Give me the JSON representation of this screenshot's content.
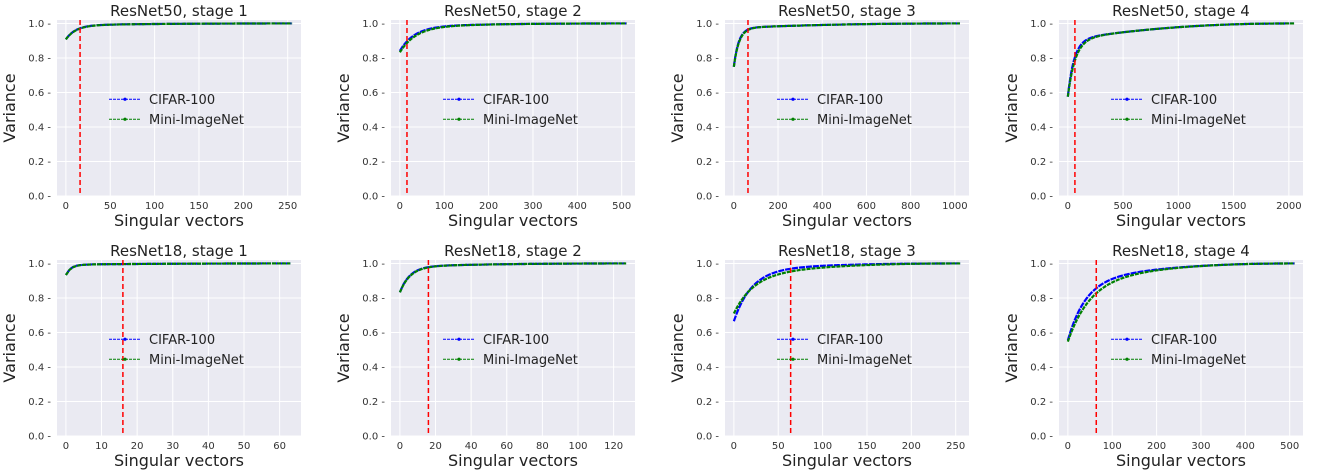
{
  "chart_data": [
    {
      "type": "line",
      "title": "ResNet50, stage 1",
      "xlabel": "Singular vectors",
      "ylabel": "Variance",
      "xlim": [
        -10,
        265
      ],
      "ylim": [
        0,
        1.02
      ],
      "xticks": [
        0,
        50,
        100,
        150,
        200,
        250
      ],
      "yticks": [
        0.0,
        0.2,
        0.4,
        0.6,
        0.8,
        1.0
      ],
      "threshold_x": 16,
      "n": 256,
      "series": [
        {
          "name": "CIFAR-100",
          "color": "#0000ff",
          "start": 0.89,
          "k": 0.09
        },
        {
          "name": "Mini-ImageNet",
          "color": "#008000",
          "start": 0.89,
          "k": 0.085
        }
      ],
      "grid": true,
      "legend_position": "center"
    },
    {
      "type": "line",
      "title": "ResNet50, stage 2",
      "xlabel": "Singular vectors",
      "ylabel": "Variance",
      "xlim": [
        -20,
        530
      ],
      "ylim": [
        0,
        1.02
      ],
      "xticks": [
        0,
        100,
        200,
        300,
        400,
        500
      ],
      "yticks": [
        0.0,
        0.2,
        0.4,
        0.6,
        0.8,
        1.0
      ],
      "threshold_x": 16,
      "n": 512,
      "series": [
        {
          "name": "CIFAR-100",
          "color": "#0000ff",
          "start": 0.81,
          "k": 0.06
        },
        {
          "name": "Mini-ImageNet",
          "color": "#008000",
          "start": 0.8,
          "k": 0.055
        }
      ],
      "grid": true,
      "legend_position": "center"
    },
    {
      "type": "line",
      "title": "ResNet50, stage 3",
      "xlabel": "Singular vectors",
      "ylabel": "Variance",
      "xlim": [
        -40,
        1064
      ],
      "ylim": [
        0.0,
        1.02
      ],
      "xticks": [
        0,
        200,
        400,
        600,
        800,
        1000
      ],
      "yticks": [
        0.0,
        0.2,
        0.4,
        0.6,
        0.8,
        1.0
      ],
      "threshold_x": 64,
      "n": 1024,
      "series": [
        {
          "name": "CIFAR-100",
          "color": "#0000ff",
          "start": 0.7,
          "k": 0.045
        },
        {
          "name": "Mini-ImageNet",
          "color": "#008000",
          "start": 0.7,
          "k": 0.042
        }
      ],
      "grid": true,
      "legend_position": "center"
    },
    {
      "type": "line",
      "title": "ResNet50, stage 4",
      "xlabel": "Singular vectors",
      "ylabel": "Variance",
      "xlim": [
        -80,
        2128
      ],
      "ylim": [
        0.0,
        1.02
      ],
      "xticks": [
        0,
        500,
        1000,
        1500,
        2000
      ],
      "yticks": [
        0.0,
        0.2,
        0.4,
        0.6,
        0.8,
        1.0
      ],
      "threshold_x": 64,
      "n": 2048,
      "series": [
        {
          "name": "CIFAR-100",
          "color": "#0000ff",
          "start": 0.4,
          "k": 0.035
        },
        {
          "name": "Mini-ImageNet",
          "color": "#008000",
          "start": 0.4,
          "k": 0.03
        }
      ],
      "grid": true,
      "legend_position": "center"
    },
    {
      "type": "line",
      "title": "ResNet18, stage 1",
      "xlabel": "Singular vectors",
      "ylabel": "Variance",
      "xlim": [
        -2.5,
        66
      ],
      "ylim": [
        0.0,
        1.02
      ],
      "xticks": [
        0,
        10,
        20,
        30,
        40,
        50,
        60
      ],
      "yticks": [
        0.0,
        0.2,
        0.4,
        0.6,
        0.8,
        1.0
      ],
      "threshold_x": 16,
      "n": 64,
      "series": [
        {
          "name": "CIFAR-100",
          "color": "#0000ff",
          "start": 0.92,
          "k": 0.18
        },
        {
          "name": "Mini-ImageNet",
          "color": "#008000",
          "start": 0.92,
          "k": 0.17
        }
      ],
      "grid": true,
      "legend_position": "center"
    },
    {
      "type": "line",
      "title": "ResNet18, stage 2",
      "xlabel": "Singular vectors",
      "ylabel": "Variance",
      "xlim": [
        -5,
        132
      ],
      "ylim": [
        0.0,
        1.02
      ],
      "xticks": [
        0,
        20,
        40,
        60,
        80,
        100,
        120
      ],
      "yticks": [
        0.0,
        0.2,
        0.4,
        0.6,
        0.8,
        1.0
      ],
      "threshold_x": 16,
      "n": 128,
      "series": [
        {
          "name": "CIFAR-100",
          "color": "#0000ff",
          "start": 0.8,
          "k": 0.09
        },
        {
          "name": "Mini-ImageNet",
          "color": "#008000",
          "start": 0.8,
          "k": 0.085
        }
      ],
      "grid": true,
      "legend_position": "center"
    },
    {
      "type": "line",
      "title": "ResNet18, stage 3",
      "xlabel": "Singular vectors",
      "ylabel": "Variance",
      "xlim": [
        -10,
        265
      ],
      "ylim": [
        0.0,
        1.02
      ],
      "xticks": [
        0,
        50,
        100,
        150,
        200,
        250
      ],
      "yticks": [
        0.0,
        0.2,
        0.4,
        0.6,
        0.8,
        1.0
      ],
      "threshold_x": 64,
      "n": 256,
      "series": [
        {
          "name": "CIFAR-100",
          "color": "#0000ff",
          "start": 0.6,
          "k": 0.05
        },
        {
          "name": "Mini-ImageNet",
          "color": "#008000",
          "start": 0.59,
          "k": 0.045
        }
      ],
      "grid": true,
      "legend_position": "center"
    },
    {
      "type": "line",
      "title": "ResNet18, stage 4",
      "xlabel": "Singular vectors",
      "ylabel": "Variance",
      "xlim": [
        -20,
        530
      ],
      "ylim": [
        0.0,
        1.02
      ],
      "xticks": [
        0,
        100,
        200,
        300,
        400,
        500
      ],
      "yticks": [
        0.0,
        0.2,
        0.4,
        0.6,
        0.8,
        1.0
      ],
      "threshold_x": 64,
      "n": 512,
      "series": [
        {
          "name": "CIFAR-100",
          "color": "#0000ff",
          "start": 0.37,
          "k": 0.05
        },
        {
          "name": "Mini-ImageNet",
          "color": "#008000",
          "start": 0.36,
          "k": 0.04
        }
      ],
      "grid": true,
      "legend_position": "center"
    }
  ]
}
